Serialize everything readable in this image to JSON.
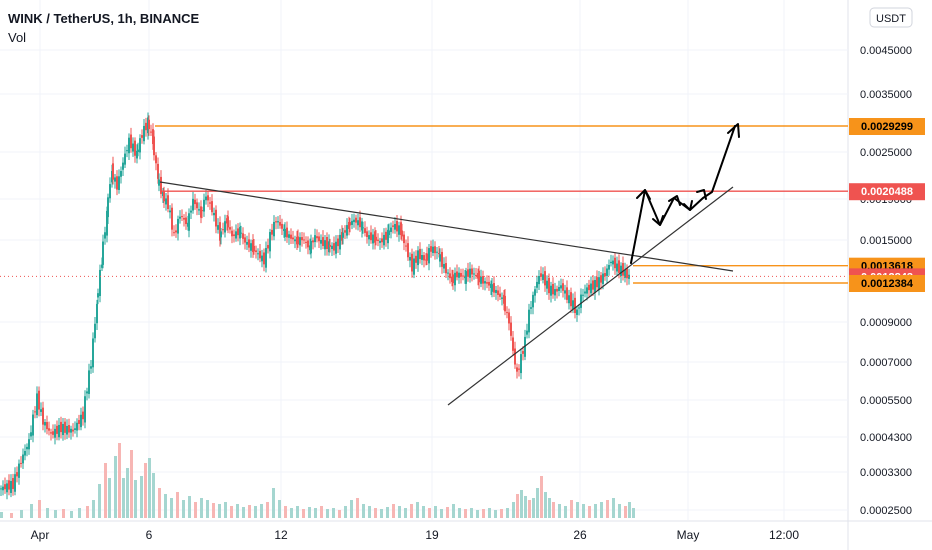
{
  "header": {
    "symbol_line": "WINK / TetherUS, 1h, BINANCE",
    "indicator": "Vol"
  },
  "currency_badge": "USDT",
  "chart_data": {
    "type": "candlestick",
    "scale": "log",
    "ylim": [
      0.00024,
      0.0056
    ],
    "y_ticks": [
      "0.0045000",
      "0.0035000",
      "0.0025000",
      "0.0019000",
      "0.0015000",
      "0.0009000",
      "0.0007000",
      "0.0005500",
      "0.0004300",
      "0.0003300",
      "0.0002500"
    ],
    "x_ticks": [
      "Apr",
      "6",
      "12",
      "19",
      "26",
      "May",
      "12:00"
    ],
    "price_levels": [
      {
        "label": "0.0029299",
        "value": 0.0029299,
        "color": "#f7931a",
        "text_color": "#000000"
      },
      {
        "label": "0.0020488",
        "value": 0.0020488,
        "color": "#ef5350",
        "text_color": "#ffffff"
      },
      {
        "label": "0.0013618",
        "value": 0.0013618,
        "color": "#f7931a",
        "text_color": "#000000"
      },
      {
        "label": "0.0012843",
        "value": 0.0012843,
        "color": "#ef5350",
        "text_color": "#ffffff"
      },
      {
        "label": "0.0012384",
        "value": 0.0012384,
        "color": "#f7931a",
        "text_color": "#000000"
      }
    ],
    "price_path": [
      [
        0,
        0.0004
      ],
      [
        14,
        0.00041
      ],
      [
        24,
        0.00048
      ],
      [
        30,
        0.00052
      ],
      [
        38,
        0.00066
      ],
      [
        44,
        0.00058
      ],
      [
        52,
        0.00054
      ],
      [
        62,
        0.00056
      ],
      [
        74,
        0.00055
      ],
      [
        84,
        0.0006
      ],
      [
        92,
        0.0008
      ],
      [
        97,
        0.0011
      ],
      [
        102,
        0.0014
      ],
      [
        107,
        0.0018
      ],
      [
        112,
        0.0023
      ],
      [
        118,
        0.0021
      ],
      [
        124,
        0.0024
      ],
      [
        130,
        0.0027
      ],
      [
        137,
        0.0025
      ],
      [
        143,
        0.0028
      ],
      [
        148,
        0.003
      ],
      [
        153,
        0.0027
      ],
      [
        158,
        0.0022
      ],
      [
        163,
        0.002
      ],
      [
        169,
        0.0019
      ],
      [
        175,
        0.0016
      ],
      [
        181,
        0.0018
      ],
      [
        188,
        0.0017
      ],
      [
        194,
        0.00195
      ],
      [
        201,
        0.0018
      ],
      [
        207,
        0.002
      ],
      [
        213,
        0.00185
      ],
      [
        220,
        0.0016
      ],
      [
        227,
        0.00175
      ],
      [
        233,
        0.0016
      ],
      [
        240,
        0.00165
      ],
      [
        246,
        0.00155
      ],
      [
        253,
        0.0015
      ],
      [
        259,
        0.00145
      ],
      [
        265,
        0.0014
      ],
      [
        271,
        0.0016
      ],
      [
        277,
        0.00175
      ],
      [
        284,
        0.00165
      ],
      [
        290,
        0.0016
      ],
      [
        297,
        0.00155
      ],
      [
        303,
        0.00158
      ],
      [
        310,
        0.0015
      ],
      [
        316,
        0.0016
      ],
      [
        322,
        0.00155
      ],
      [
        329,
        0.00152
      ],
      [
        335,
        0.0015
      ],
      [
        342,
        0.0016
      ],
      [
        349,
        0.0017
      ],
      [
        355,
        0.00175
      ],
      [
        362,
        0.0017
      ],
      [
        368,
        0.0016
      ],
      [
        375,
        0.00158
      ],
      [
        381,
        0.00155
      ],
      [
        388,
        0.00162
      ],
      [
        394,
        0.0017
      ],
      [
        401,
        0.00165
      ],
      [
        407,
        0.0015
      ],
      [
        413,
        0.00135
      ],
      [
        419,
        0.00145
      ],
      [
        426,
        0.0014
      ],
      [
        432,
        0.0015
      ],
      [
        439,
        0.00145
      ],
      [
        445,
        0.00135
      ],
      [
        452,
        0.00125
      ],
      [
        458,
        0.0013
      ],
      [
        465,
        0.00128
      ],
      [
        471,
        0.00132
      ],
      [
        478,
        0.00128
      ],
      [
        484,
        0.00125
      ],
      [
        491,
        0.00122
      ],
      [
        497,
        0.00118
      ],
      [
        504,
        0.00112
      ],
      [
        510,
        0.001
      ],
      [
        514,
        0.00085
      ],
      [
        518,
        0.00075
      ],
      [
        522,
        0.00082
      ],
      [
        526,
        0.0009
      ],
      [
        530,
        0.00105
      ],
      [
        534,
        0.00115
      ],
      [
        538,
        0.00125
      ],
      [
        542,
        0.0013
      ],
      [
        546,
        0.00125
      ],
      [
        550,
        0.0012
      ],
      [
        556,
        0.00118
      ],
      [
        562,
        0.00122
      ],
      [
        568,
        0.00115
      ],
      [
        574,
        0.0011
      ],
      [
        578,
        0.00105
      ],
      [
        582,
        0.00115
      ],
      [
        588,
        0.0012
      ],
      [
        594,
        0.00122
      ],
      [
        600,
        0.00125
      ],
      [
        606,
        0.0013
      ],
      [
        612,
        0.0014
      ],
      [
        618,
        0.00135
      ],
      [
        624,
        0.00132
      ],
      [
        630,
        0.00128
      ]
    ],
    "volume_bars": [
      [
        0,
        6
      ],
      [
        10,
        5
      ],
      [
        20,
        8
      ],
      [
        30,
        14
      ],
      [
        38,
        18
      ],
      [
        46,
        10
      ],
      [
        54,
        8
      ],
      [
        62,
        9
      ],
      [
        70,
        7
      ],
      [
        78,
        10
      ],
      [
        86,
        12
      ],
      [
        92,
        18
      ],
      [
        98,
        34
      ],
      [
        104,
        55
      ],
      [
        108,
        40
      ],
      [
        114,
        62
      ],
      [
        118,
        75
      ],
      [
        122,
        40
      ],
      [
        126,
        50
      ],
      [
        130,
        68
      ],
      [
        134,
        38
      ],
      [
        140,
        42
      ],
      [
        144,
        55
      ],
      [
        148,
        60
      ],
      [
        152,
        45
      ],
      [
        158,
        30
      ],
      [
        164,
        24
      ],
      [
        170,
        20
      ],
      [
        176,
        26
      ],
      [
        182,
        18
      ],
      [
        188,
        22
      ],
      [
        194,
        16
      ],
      [
        200,
        20
      ],
      [
        206,
        18
      ],
      [
        212,
        15
      ],
      [
        218,
        14
      ],
      [
        224,
        16
      ],
      [
        230,
        12
      ],
      [
        236,
        14
      ],
      [
        242,
        11
      ],
      [
        248,
        13
      ],
      [
        254,
        12
      ],
      [
        260,
        14
      ],
      [
        266,
        16
      ],
      [
        272,
        30
      ],
      [
        278,
        18
      ],
      [
        284,
        12
      ],
      [
        290,
        10
      ],
      [
        296,
        12
      ],
      [
        302,
        9
      ],
      [
        308,
        11
      ],
      [
        314,
        10
      ],
      [
        320,
        12
      ],
      [
        326,
        9
      ],
      [
        332,
        10
      ],
      [
        338,
        8
      ],
      [
        344,
        12
      ],
      [
        350,
        18
      ],
      [
        356,
        20
      ],
      [
        362,
        14
      ],
      [
        368,
        12
      ],
      [
        374,
        10
      ],
      [
        380,
        9
      ],
      [
        386,
        11
      ],
      [
        392,
        14
      ],
      [
        398,
        12
      ],
      [
        404,
        10
      ],
      [
        410,
        14
      ],
      [
        416,
        16
      ],
      [
        422,
        12
      ],
      [
        428,
        10
      ],
      [
        434,
        12
      ],
      [
        440,
        9
      ],
      [
        446,
        11
      ],
      [
        452,
        14
      ],
      [
        458,
        10
      ],
      [
        464,
        9
      ],
      [
        470,
        10
      ],
      [
        476,
        8
      ],
      [
        482,
        9
      ],
      [
        488,
        10
      ],
      [
        494,
        8
      ],
      [
        500,
        9
      ],
      [
        506,
        10
      ],
      [
        512,
        16
      ],
      [
        516,
        24
      ],
      [
        520,
        28
      ],
      [
        524,
        22
      ],
      [
        528,
        18
      ],
      [
        532,
        20
      ],
      [
        536,
        30
      ],
      [
        540,
        42
      ],
      [
        544,
        26
      ],
      [
        548,
        20
      ],
      [
        552,
        16
      ],
      [
        558,
        14
      ],
      [
        564,
        12
      ],
      [
        570,
        18
      ],
      [
        576,
        16
      ],
      [
        582,
        14
      ],
      [
        588,
        12
      ],
      [
        594,
        14
      ],
      [
        600,
        16
      ],
      [
        606,
        18
      ],
      [
        612,
        20
      ],
      [
        618,
        14
      ],
      [
        624,
        12
      ],
      [
        628,
        16
      ],
      [
        632,
        10
      ]
    ],
    "colors": {
      "up": "#26a69a",
      "down": "#ef5350",
      "volume_up": "#a5d6d0",
      "volume_down": "#f7b6b4",
      "trendline": "#333333",
      "arrows": "#000000"
    }
  }
}
